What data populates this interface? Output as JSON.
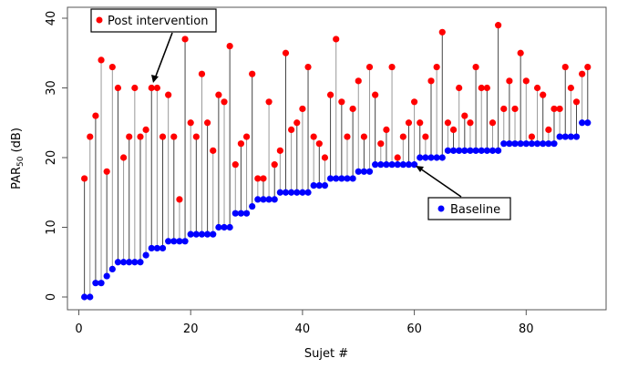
{
  "chart_data": {
    "type": "scatter",
    "xlabel": "Sujet #",
    "ylabel_main": "PAR",
    "ylabel_sub": "50",
    "ylabel_unit": " (dB)",
    "xlim": [
      0,
      93
    ],
    "ylim": [
      0,
      40
    ],
    "xticks": [
      0,
      20,
      40,
      60,
      80
    ],
    "yticks": [
      0,
      10,
      20,
      30,
      40
    ],
    "grid": false,
    "series": [
      {
        "name": "Post intervention",
        "color": "#ff0000",
        "values": [
          17,
          23,
          26,
          34,
          18,
          33,
          30,
          20,
          23,
          30,
          23,
          24,
          30,
          30,
          23,
          29,
          23,
          14,
          37,
          25,
          23,
          32,
          25,
          21,
          29,
          28,
          36,
          19,
          22,
          23,
          32,
          17,
          17,
          28,
          19,
          21,
          35,
          24,
          25,
          27,
          33,
          23,
          22,
          20,
          29,
          37,
          28,
          23,
          27,
          31,
          23,
          33,
          29,
          22,
          24,
          33,
          20,
          23,
          25,
          28,
          25,
          23,
          31,
          33,
          38,
          25,
          24,
          30,
          26,
          25,
          33,
          30,
          30,
          25,
          39,
          27,
          31,
          27,
          35,
          31,
          23,
          30,
          29,
          24,
          27,
          27,
          33,
          30,
          28,
          32,
          33
        ]
      },
      {
        "name": "Baseline",
        "color": "#0000ff",
        "values": [
          0,
          0,
          2,
          2,
          3,
          4,
          5,
          5,
          5,
          5,
          5,
          6,
          7,
          7,
          7,
          8,
          8,
          8,
          8,
          9,
          9,
          9,
          9,
          9,
          10,
          10,
          10,
          12,
          12,
          12,
          13,
          14,
          14,
          14,
          14,
          15,
          15,
          15,
          15,
          15,
          15,
          16,
          16,
          16,
          17,
          17,
          17,
          17,
          17,
          18,
          18,
          18,
          19,
          19,
          19,
          19,
          19,
          19,
          19,
          19,
          20,
          20,
          20,
          20,
          20,
          21,
          21,
          21,
          21,
          21,
          21,
          21,
          21,
          21,
          21,
          22,
          22,
          22,
          22,
          22,
          22,
          22,
          22,
          22,
          22,
          23,
          23,
          23,
          23,
          25,
          25
        ]
      }
    ],
    "annotations": [
      {
        "text": "Post intervention",
        "points_to_subject": 13
      },
      {
        "text": "Baseline",
        "points_to_subject": 60
      }
    ]
  }
}
